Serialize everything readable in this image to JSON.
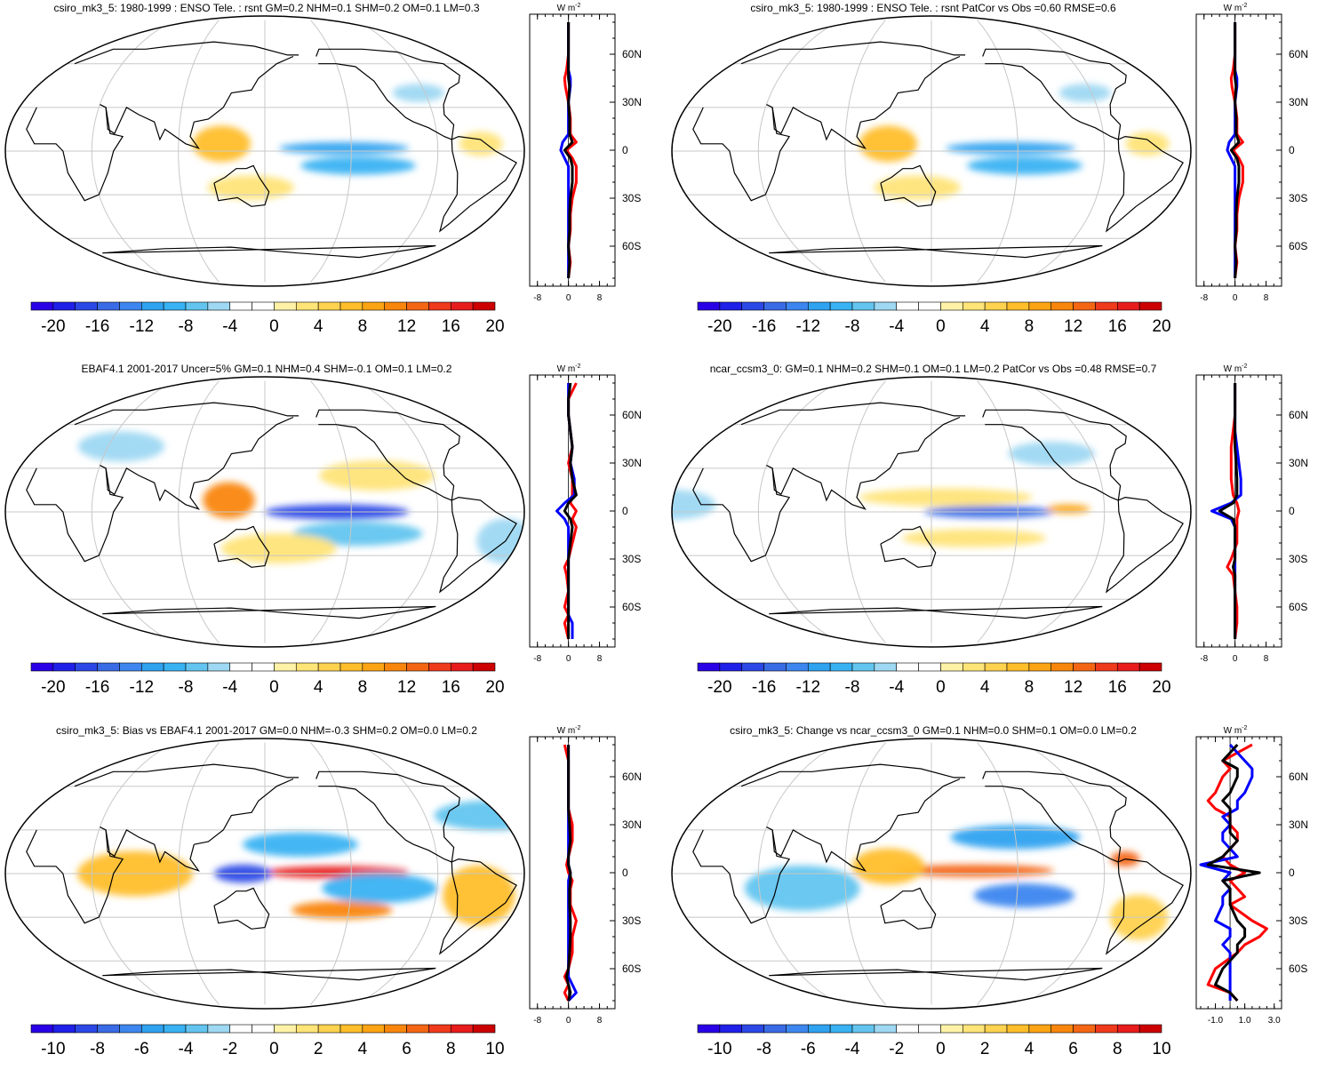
{
  "units": {
    "base": "W m",
    "exp": "-2"
  },
  "latitude_labels": [
    "60N",
    "30N",
    "0",
    "30S",
    "60S"
  ],
  "colors": {
    "palette": [
      "#2a00e6",
      "#1f20e8",
      "#2b48e6",
      "#3a6be6",
      "#3d86ef",
      "#2fa2f0",
      "#38b2f2",
      "#63c5ef",
      "#9ed8f2",
      "#ffffff",
      "#ffffff",
      "#fff2a6",
      "#ffe478",
      "#ffd24f",
      "#ffbe2a",
      "#fca414",
      "#f9860c",
      "#f46614",
      "#ef3a1c",
      "#e81c1c",
      "#cc0000"
    ],
    "blue": "#0000ff",
    "red": "#ff0000",
    "black": "#000000",
    "grid": "#c8c8c8"
  },
  "panels": [
    {
      "id": "p1",
      "title": "csiro_mk3_5: 1980-1999 : ENSO Tele. : rsnt GM=0.2 NHM=0.1 SHM=0.2 OM=0.1 LM=0.3",
      "colorbar_labels": [
        "-20",
        "-16",
        "-12",
        "-8",
        "-4",
        "0",
        "4",
        "8",
        "12",
        "16",
        "20"
      ],
      "profile_ticks": [
        "-8",
        "0",
        "8"
      ],
      "profile_range": [
        -10,
        12
      ],
      "pattern": [
        {
          "lon": 205,
          "lat": 2,
          "rx": 45,
          "ry": 4,
          "v": -12
        },
        {
          "lon": 215,
          "lat": -10,
          "rx": 40,
          "ry": 6,
          "v": -8
        },
        {
          "lon": 120,
          "lat": 5,
          "rx": 20,
          "ry": 12,
          "v": 8
        },
        {
          "lon": 140,
          "lat": -25,
          "rx": 30,
          "ry": 8,
          "v": 4
        },
        {
          "lon": 300,
          "lat": 5,
          "rx": 15,
          "ry": 8,
          "v": 4
        },
        {
          "lon": 265,
          "lat": 40,
          "rx": 18,
          "ry": 6,
          "v": -4
        }
      ],
      "chart_data": {
        "type": "line",
        "lat": [
          80,
          70,
          60,
          50,
          45,
          40,
          30,
          20,
          10,
          5,
          0,
          -5,
          -10,
          -20,
          -30,
          -40,
          -50,
          -60,
          -70,
          -80
        ],
        "series": [
          {
            "color": "red",
            "values": [
              0,
              0,
              0,
              -0.5,
              -1,
              -0.8,
              0,
              0.5,
              0.5,
              2,
              -0.5,
              1,
              2,
              2,
              1,
              0.5,
              0.5,
              0,
              0.5,
              0
            ]
          },
          {
            "color": "blue",
            "values": [
              0,
              0,
              0,
              0,
              0.5,
              0.5,
              0,
              0,
              0,
              -1.5,
              -2,
              -1,
              0,
              0,
              0,
              0,
              0,
              0,
              0,
              0
            ]
          },
          {
            "color": "black",
            "values": [
              0,
              0,
              0,
              0,
              0,
              0.3,
              0,
              0.3,
              0.3,
              1,
              -1,
              0.5,
              1,
              1,
              0.5,
              0.3,
              0.3,
              0,
              0.3,
              0
            ]
          }
        ]
      }
    },
    {
      "id": "p2",
      "title": "csiro_mk3_5: 1980-1999 : ENSO Tele. : rsnt PatCor vs Obs =0.60 RMSE=0.6",
      "colorbar_labels": [
        "-20",
        "-16",
        "-12",
        "-8",
        "-4",
        "0",
        "4",
        "8",
        "12",
        "16",
        "20"
      ],
      "profile_ticks": [
        "-8",
        "0",
        "8"
      ],
      "profile_range": [
        -10,
        12
      ],
      "pattern": [
        {
          "lon": 205,
          "lat": 2,
          "rx": 45,
          "ry": 4,
          "v": -12
        },
        {
          "lon": 215,
          "lat": -10,
          "rx": 40,
          "ry": 6,
          "v": -8
        },
        {
          "lon": 120,
          "lat": 5,
          "rx": 20,
          "ry": 12,
          "v": 8
        },
        {
          "lon": 140,
          "lat": -25,
          "rx": 30,
          "ry": 8,
          "v": 4
        },
        {
          "lon": 300,
          "lat": 5,
          "rx": 15,
          "ry": 8,
          "v": 4
        },
        {
          "lon": 265,
          "lat": 40,
          "rx": 18,
          "ry": 6,
          "v": -4
        }
      ],
      "chart_data": {
        "type": "line",
        "lat": [
          80,
          70,
          60,
          50,
          45,
          40,
          30,
          20,
          10,
          5,
          0,
          -5,
          -10,
          -20,
          -30,
          -40,
          -50,
          -60,
          -70,
          -80
        ],
        "series": [
          {
            "color": "red",
            "values": [
              0,
              0,
              0,
              -0.5,
              -1,
              -0.8,
              0,
              0.5,
              0.5,
              2,
              -0.5,
              1,
              2,
              2,
              1,
              0.5,
              0.5,
              0,
              0.5,
              0
            ]
          },
          {
            "color": "blue",
            "values": [
              0,
              0,
              0,
              0,
              0.5,
              0.5,
              0,
              0,
              0,
              -1.5,
              -2,
              -1,
              0,
              0,
              0,
              0,
              0,
              0,
              0,
              0
            ]
          },
          {
            "color": "black",
            "values": [
              0,
              0,
              0,
              0,
              0,
              0.3,
              0,
              0.3,
              0.3,
              1,
              -1,
              0.5,
              1,
              1,
              0.5,
              0.3,
              0.3,
              0,
              0.3,
              0
            ]
          }
        ]
      }
    },
    {
      "id": "p3",
      "title": "EBAF4.1 2001-2017 Uncer=5% GM=0.1 NHM=0.4 SHM=-0.1 OM=0.1 LM=0.2",
      "colorbar_labels": [
        "-20",
        "-16",
        "-12",
        "-8",
        "-4",
        "0",
        "4",
        "8",
        "12",
        "16",
        "20"
      ],
      "profile_ticks": [
        "-8",
        "0",
        "8"
      ],
      "profile_range": [
        -10,
        12
      ],
      "pattern": [
        {
          "lon": 200,
          "lat": 0,
          "rx": 50,
          "ry": 5,
          "v": -18
        },
        {
          "lon": 215,
          "lat": -15,
          "rx": 45,
          "ry": 8,
          "v": -6
        },
        {
          "lon": 125,
          "lat": 8,
          "rx": 18,
          "ry": 12,
          "v": 14
        },
        {
          "lon": 160,
          "lat": -25,
          "rx": 40,
          "ry": 10,
          "v": 4
        },
        {
          "lon": 230,
          "lat": 25,
          "rx": 40,
          "ry": 10,
          "v": 4
        },
        {
          "lon": 40,
          "lat": 45,
          "rx": 30,
          "ry": 10,
          "v": -4
        },
        {
          "lon": 320,
          "lat": -20,
          "rx": 20,
          "ry": 15,
          "v": -4
        }
      ],
      "chart_data": {
        "type": "line",
        "lat": [
          80,
          70,
          60,
          50,
          40,
          30,
          20,
          10,
          5,
          0,
          -5,
          -10,
          -20,
          -30,
          -35,
          -40,
          -50,
          -60,
          -65,
          -70,
          -80
        ],
        "series": [
          {
            "color": "red",
            "values": [
              2,
              0,
              0,
              0.5,
              1,
              0,
              1,
              1,
              0.5,
              2,
              1,
              2,
              1,
              0,
              -1,
              -0.5,
              0,
              -1,
              0,
              -1,
              0
            ]
          },
          {
            "color": "blue",
            "values": [
              0,
              0,
              0,
              0.5,
              1,
              0.5,
              1.5,
              1.5,
              -1,
              -3,
              -1,
              0,
              0,
              0,
              0,
              0,
              0,
              0,
              0,
              1,
              1
            ]
          },
          {
            "color": "black",
            "values": [
              0.5,
              0,
              0,
              0.5,
              1,
              0.5,
              1,
              2,
              0,
              -1,
              0.5,
              1,
              0.5,
              0,
              0,
              0,
              0,
              0,
              0,
              0,
              0
            ]
          }
        ]
      }
    },
    {
      "id": "p4",
      "title": "ncar_ccsm3_0: GM=0.1 NHM=0.2 SHM=0.1 OM=0.1 LM=0.2 PatCor vs Obs =0.48 RMSE=0.7",
      "colorbar_labels": [
        "-20",
        "-16",
        "-12",
        "-8",
        "-4",
        "0",
        "4",
        "8",
        "12",
        "16",
        "20"
      ],
      "profile_ticks": [
        "-8",
        "0",
        "8"
      ],
      "profile_range": [
        -10,
        12
      ],
      "pattern": [
        {
          "lon": 190,
          "lat": 0,
          "rx": 45,
          "ry": 4,
          "v": -16
        },
        {
          "lon": 245,
          "lat": 2,
          "rx": 15,
          "ry": 3,
          "v": 10
        },
        {
          "lon": 160,
          "lat": 10,
          "rx": 60,
          "ry": 6,
          "v": 4
        },
        {
          "lon": 180,
          "lat": -18,
          "rx": 50,
          "ry": 6,
          "v": 4
        },
        {
          "lon": 330,
          "lat": 5,
          "rx": 30,
          "ry": 10,
          "v": -4
        },
        {
          "lon": 240,
          "lat": 40,
          "rx": 30,
          "ry": 8,
          "v": -4
        }
      ],
      "chart_data": {
        "type": "line",
        "lat": [
          80,
          70,
          60,
          50,
          40,
          30,
          20,
          10,
          5,
          0,
          -5,
          -10,
          -20,
          -30,
          -35,
          -40,
          -50,
          -60,
          -70,
          -80
        ],
        "series": [
          {
            "color": "red",
            "values": [
              0,
              0,
              0,
              -0.5,
              -1,
              -1,
              -1,
              -0.5,
              0.5,
              1,
              0.5,
              0.5,
              0.5,
              -1,
              -2,
              -0.5,
              0,
              0.5,
              0.5,
              0
            ]
          },
          {
            "color": "blue",
            "values": [
              0,
              0,
              0,
              0,
              0.5,
              1,
              1.5,
              1.5,
              -1,
              -6,
              -1,
              0,
              0,
              0,
              0,
              0,
              0,
              0,
              0,
              0
            ]
          },
          {
            "color": "black",
            "values": [
              0,
              0,
              0,
              0,
              0,
              0.3,
              0.5,
              0.5,
              -0.5,
              -4,
              -0.5,
              0,
              0,
              0,
              -0.5,
              0,
              0,
              0,
              0,
              0
            ]
          }
        ]
      }
    },
    {
      "id": "p5",
      "title": "csiro_mk3_5: Bias vs EBAF4.1 2001-2017 GM=0.0 NHM=-0.3 SHM=0.2 OM=0.0 LM=0.2",
      "colorbar_labels": [
        "-10",
        "-8",
        "-6",
        "-4",
        "-2",
        "0",
        "2",
        "4",
        "6",
        "8",
        "10"
      ],
      "profile_ticks": [
        "-8",
        "0",
        "8"
      ],
      "profile_range": [
        -10,
        12
      ],
      "pattern": [
        {
          "lon": 200,
          "lat": 1,
          "rx": 50,
          "ry": 4,
          "v": 10
        },
        {
          "lon": 135,
          "lat": 0,
          "rx": 20,
          "ry": 6,
          "v": -9
        },
        {
          "lon": 205,
          "lat": -25,
          "rx": 35,
          "ry": 6,
          "v": 7
        },
        {
          "lon": 175,
          "lat": 20,
          "rx": 40,
          "ry": 8,
          "v": -4
        },
        {
          "lon": 230,
          "lat": -10,
          "rx": 40,
          "ry": 10,
          "v": -4
        },
        {
          "lon": 60,
          "lat": 0,
          "rx": 40,
          "ry": 15,
          "v": 4
        },
        {
          "lon": 300,
          "lat": -15,
          "rx": 25,
          "ry": 20,
          "v": 4
        },
        {
          "lon": 320,
          "lat": 40,
          "rx": 40,
          "ry": 10,
          "v": -3
        }
      ],
      "chart_data": {
        "type": "line",
        "lat": [
          80,
          70,
          60,
          50,
          40,
          30,
          20,
          10,
          5,
          0,
          -5,
          -10,
          -20,
          -30,
          -40,
          -50,
          -60,
          -65,
          -70,
          -75,
          -80
        ],
        "series": [
          {
            "color": "red",
            "values": [
              -1,
              0,
              0,
              0,
              0,
              1,
              1,
              0,
              -0.5,
              0,
              1,
              0.5,
              0.5,
              2,
              1,
              1,
              0,
              -1,
              0,
              -1,
              0
            ]
          },
          {
            "color": "blue",
            "values": [
              0,
              0,
              0,
              0,
              0,
              0,
              0,
              0,
              0,
              0.5,
              0,
              0,
              0,
              0,
              0,
              0,
              0,
              0,
              1,
              2,
              0
            ]
          },
          {
            "color": "black",
            "values": [
              0,
              0,
              0,
              0,
              0,
              0.3,
              0.5,
              0,
              0,
              0.5,
              0.5,
              0.3,
              0.3,
              0.5,
              0.5,
              0.3,
              0,
              -0.5,
              0,
              0.5,
              0
            ]
          }
        ]
      }
    },
    {
      "id": "p6",
      "title": "csiro_mk3_5: Change vs ncar_ccsm3_0 GM=0.1 NHM=0.0 SHM=0.1 OM=0.0 LM=0.2",
      "colorbar_labels": [
        "-10",
        "-8",
        "-6",
        "-4",
        "-2",
        "0",
        "2",
        "4",
        "6",
        "8",
        "10"
      ],
      "profile_ticks": [
        "-1.0",
        "1.0",
        "3.0"
      ],
      "profile_tick_values": [
        -1.0,
        1.0,
        3.0
      ],
      "profile_range": [
        -2.3,
        3.5
      ],
      "pattern": [
        {
          "lon": 180,
          "lat": 2,
          "rx": 55,
          "ry": 4,
          "v": 8
        },
        {
          "lon": 215,
          "lat": -15,
          "rx": 35,
          "ry": 8,
          "v": -7
        },
        {
          "lon": 210,
          "lat": 25,
          "rx": 45,
          "ry": 8,
          "v": -5
        },
        {
          "lon": 120,
          "lat": 5,
          "rx": 25,
          "ry": 12,
          "v": 4
        },
        {
          "lon": 285,
          "lat": 10,
          "rx": 10,
          "ry": 5,
          "v": 8
        },
        {
          "lon": 60,
          "lat": -10,
          "rx": 40,
          "ry": 15,
          "v": -3
        },
        {
          "lon": 300,
          "lat": -30,
          "rx": 20,
          "ry": 15,
          "v": 3
        }
      ],
      "chart_data": {
        "type": "line",
        "lat": [
          80,
          75,
          70,
          65,
          60,
          50,
          45,
          40,
          35,
          30,
          25,
          20,
          15,
          10,
          5,
          0,
          -5,
          -10,
          -15,
          -20,
          -30,
          -35,
          -40,
          -45,
          -50,
          -60,
          -70,
          -75,
          -80
        ],
        "series": [
          {
            "color": "red",
            "values": [
              1.5,
              0.5,
              -0.5,
              0,
              -0.5,
              -1,
              -1.5,
              -1,
              0,
              0,
              0.5,
              0.5,
              0,
              -0.5,
              0,
              1,
              0,
              0.5,
              1,
              0,
              1.5,
              2.5,
              2,
              1,
              0.5,
              -1,
              -1.5,
              0,
              0.5
            ]
          },
          {
            "color": "blue",
            "values": [
              0,
              0.5,
              1,
              1.5,
              1.5,
              1,
              0.5,
              0.5,
              -0.5,
              0,
              -0.5,
              -0.5,
              0,
              0.5,
              -2,
              0,
              -0.5,
              0,
              -0.5,
              -0.5,
              -1,
              0,
              0,
              -0.5,
              0,
              0,
              0,
              0,
              0
            ]
          },
          {
            "color": "black",
            "values": [
              0.5,
              0,
              -0.5,
              0.5,
              0.5,
              0,
              -0.5,
              0,
              0,
              0,
              0,
              0.5,
              0,
              -0.5,
              -1.5,
              2,
              -0.5,
              0,
              0,
              0,
              0.5,
              1,
              1,
              0.5,
              0.5,
              -0.5,
              -1,
              0,
              0.5
            ]
          }
        ]
      }
    }
  ]
}
